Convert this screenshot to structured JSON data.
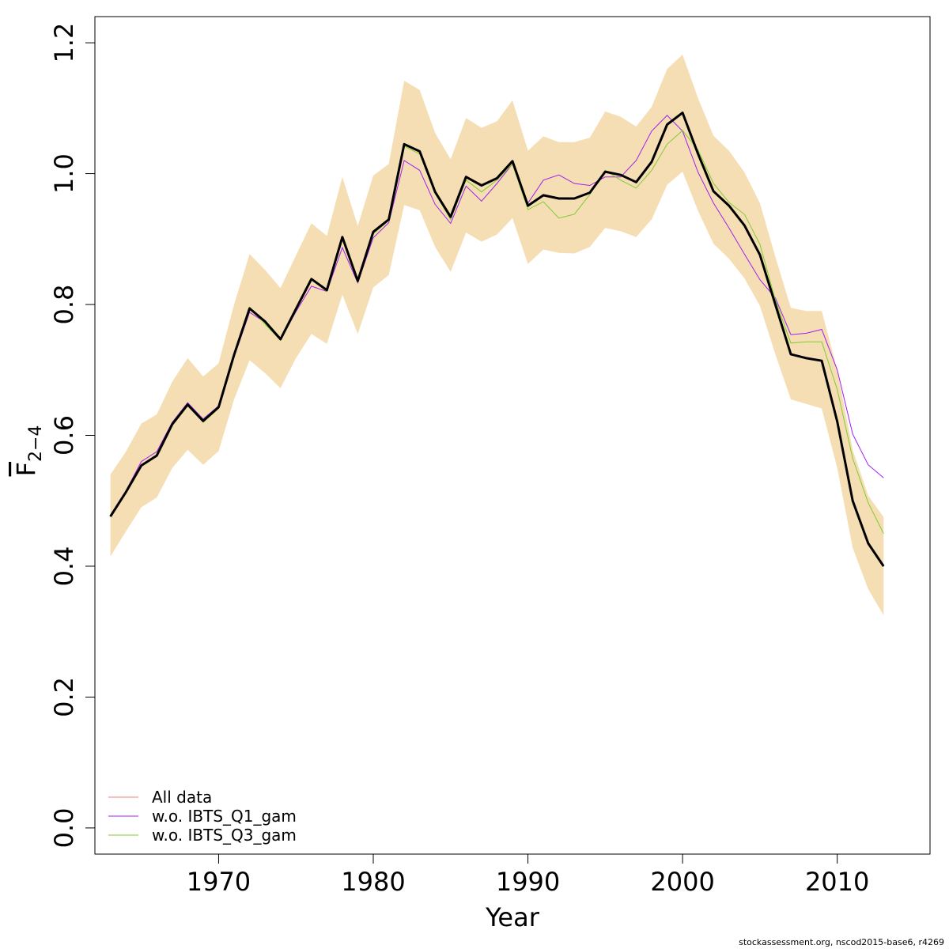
{
  "chart_data": {
    "type": "line",
    "xlabel": "Year",
    "ylabel": {
      "main": "F",
      "sub": "2−4"
    },
    "xlim": [
      1962,
      2016
    ],
    "ylim": [
      -0.04,
      1.24
    ],
    "xticks": [
      "1970",
      "1980",
      "1990",
      "2000",
      "2010"
    ],
    "xtick_values": [
      1970,
      1980,
      1990,
      2000,
      2010
    ],
    "yticks": [
      "0.0",
      "0.2",
      "0.4",
      "0.6",
      "0.8",
      "1.0",
      "1.2"
    ],
    "ytick_values": [
      0,
      0.2,
      0.4,
      0.6,
      0.8,
      1.0,
      1.2
    ],
    "band_color": "#f5deb3",
    "x": [
      1963,
      1964,
      1965,
      1966,
      1967,
      1968,
      1969,
      1970,
      1971,
      1972,
      1973,
      1974,
      1975,
      1976,
      1977,
      1978,
      1979,
      1980,
      1981,
      1982,
      1983,
      1984,
      1985,
      1986,
      1987,
      1988,
      1989,
      1990,
      1991,
      1992,
      1993,
      1994,
      1995,
      1996,
      1997,
      1998,
      1999,
      2000,
      2001,
      2002,
      2003,
      2004,
      2005,
      2006,
      2007,
      2008,
      2009,
      2010,
      2011,
      2012,
      2013
    ],
    "band_upper": [
      0.54,
      0.575,
      0.618,
      0.632,
      0.682,
      0.718,
      0.69,
      0.71,
      0.8,
      0.877,
      0.853,
      0.825,
      0.875,
      0.924,
      0.905,
      0.995,
      0.92,
      0.997,
      1.015,
      1.142,
      1.128,
      1.062,
      1.022,
      1.085,
      1.07,
      1.08,
      1.112,
      1.035,
      1.057,
      1.048,
      1.048,
      1.055,
      1.095,
      1.087,
      1.072,
      1.102,
      1.16,
      1.182,
      1.115,
      1.058,
      1.035,
      1.002,
      0.955,
      0.873,
      0.795,
      0.79,
      0.79,
      0.7,
      0.578,
      0.508,
      0.475
    ],
    "band_lower": [
      0.415,
      0.453,
      0.49,
      0.505,
      0.55,
      0.578,
      0.555,
      0.576,
      0.655,
      0.715,
      0.695,
      0.672,
      0.718,
      0.755,
      0.74,
      0.815,
      0.755,
      0.826,
      0.845,
      0.952,
      0.944,
      0.888,
      0.85,
      0.91,
      0.896,
      0.907,
      0.932,
      0.862,
      0.884,
      0.879,
      0.878,
      0.888,
      0.917,
      0.912,
      0.903,
      0.93,
      0.983,
      1.003,
      0.943,
      0.893,
      0.87,
      0.84,
      0.798,
      0.724,
      0.655,
      0.648,
      0.641,
      0.55,
      0.428,
      0.365,
      0.325
    ],
    "series": [
      {
        "name": "All data",
        "color": "#ef7f7f",
        "values": [
          0.476,
          0.513,
          0.554,
          0.569,
          0.617,
          0.647,
          0.622,
          0.643,
          0.723,
          0.794,
          0.774,
          0.747,
          0.793,
          0.839,
          0.822,
          0.903,
          0.836,
          0.911,
          0.93,
          1.045,
          1.034,
          0.972,
          0.934,
          0.995,
          0.982,
          0.993,
          1.019,
          0.951,
          0.967,
          0.962,
          0.962,
          0.971,
          1.003,
          0.998,
          0.987,
          1.018,
          1.075,
          1.093,
          1.03,
          0.973,
          0.951,
          0.921,
          0.876,
          0.8,
          0.724,
          0.718,
          0.714,
          0.621,
          0.5,
          0.435,
          0.4
        ]
      },
      {
        "name": "w.o. IBTS_Q1_gam",
        "color": "#a020f0",
        "values": [
          0.478,
          0.515,
          0.56,
          0.575,
          0.62,
          0.65,
          0.625,
          0.645,
          0.72,
          0.788,
          0.773,
          0.746,
          0.789,
          0.828,
          0.82,
          0.887,
          0.833,
          0.902,
          0.925,
          1.02,
          1.005,
          0.953,
          0.924,
          0.981,
          0.958,
          0.985,
          1.015,
          0.955,
          0.99,
          0.998,
          0.985,
          0.982,
          0.995,
          0.995,
          1.02,
          1.065,
          1.089,
          1.065,
          1.002,
          0.955,
          0.917,
          0.877,
          0.838,
          0.81,
          0.754,
          0.756,
          0.762,
          0.7,
          0.602,
          0.555,
          0.535
        ]
      },
      {
        "name": "w.o. IBTS_Q3_gam",
        "color": "#7fcd32",
        "values": [
          0.475,
          0.512,
          0.555,
          0.568,
          0.615,
          0.645,
          0.62,
          0.641,
          0.725,
          0.796,
          0.77,
          0.745,
          0.792,
          0.838,
          0.82,
          0.9,
          0.835,
          0.908,
          0.928,
          1.042,
          1.03,
          0.97,
          0.93,
          0.99,
          0.972,
          0.99,
          1.015,
          0.945,
          0.957,
          0.932,
          0.938,
          0.968,
          1.005,
          0.99,
          0.978,
          1.005,
          1.045,
          1.066,
          1.036,
          0.985,
          0.956,
          0.938,
          0.892,
          0.807,
          0.741,
          0.743,
          0.743,
          0.67,
          0.565,
          0.497,
          0.45
        ]
      }
    ],
    "legend_position": "bottom-left"
  },
  "footer": "stockassessment.org, nscod2015-base6, r4269"
}
